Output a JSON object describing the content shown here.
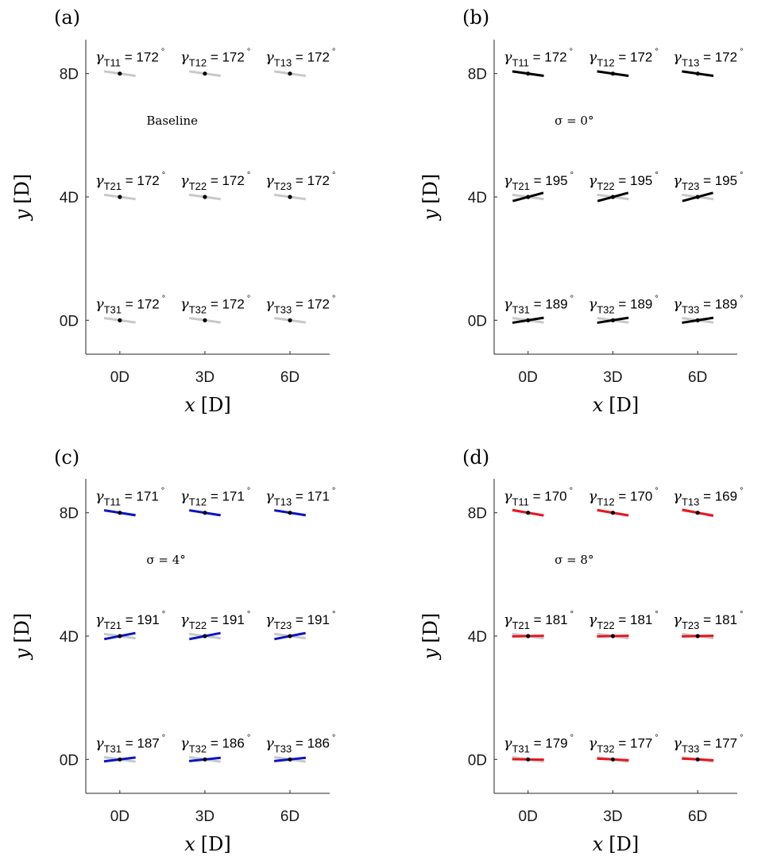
{
  "chart_data": [
    {
      "type": "scatter",
      "panel_label": "(a)",
      "annotation": "Baseline",
      "xlabel_var": "x",
      "xlabel_unit": "[D]",
      "ylabel_var": "y",
      "ylabel_unit": "[D]",
      "x_ticks": [
        "0D",
        "3D",
        "6D"
      ],
      "y_ticks": [
        "0D",
        "4D",
        "8D"
      ],
      "xlim": [
        -1.2,
        7.4
      ],
      "ylim": [
        -1.1,
        9.1
      ],
      "line_color": "#c8c8c8",
      "show_baseline": false,
      "turbines": [
        {
          "id": "11",
          "x": 0,
          "y": 8,
          "gamma": 172,
          "label": "172"
        },
        {
          "id": "12",
          "x": 3,
          "y": 8,
          "gamma": 172,
          "label": "172"
        },
        {
          "id": "13",
          "x": 6,
          "y": 8,
          "gamma": 172,
          "label": "172"
        },
        {
          "id": "21",
          "x": 0,
          "y": 4,
          "gamma": 172,
          "label": "172"
        },
        {
          "id": "22",
          "x": 3,
          "y": 4,
          "gamma": 172,
          "label": "172"
        },
        {
          "id": "23",
          "x": 6,
          "y": 4,
          "gamma": 172,
          "label": "172"
        },
        {
          "id": "31",
          "x": 0,
          "y": 0,
          "gamma": 172,
          "label": "172"
        },
        {
          "id": "32",
          "x": 3,
          "y": 0,
          "gamma": 172,
          "label": "172"
        },
        {
          "id": "33",
          "x": 6,
          "y": 0,
          "gamma": 172,
          "label": "172"
        }
      ]
    },
    {
      "type": "scatter",
      "panel_label": "(b)",
      "annotation": "σ = 0°",
      "xlabel_var": "x",
      "xlabel_unit": "[D]",
      "ylabel_var": "y",
      "ylabel_unit": "[D]",
      "x_ticks": [
        "0D",
        "3D",
        "6D"
      ],
      "y_ticks": [
        "0D",
        "4D",
        "8D"
      ],
      "xlim": [
        -1.2,
        7.4
      ],
      "ylim": [
        -1.1,
        9.1
      ],
      "line_color": "#000000",
      "show_baseline": true,
      "turbines": [
        {
          "id": "11",
          "x": 0,
          "y": 8,
          "gamma": 172,
          "label": "172"
        },
        {
          "id": "12",
          "x": 3,
          "y": 8,
          "gamma": 172,
          "label": "172"
        },
        {
          "id": "13",
          "x": 6,
          "y": 8,
          "gamma": 172,
          "label": "172"
        },
        {
          "id": "21",
          "x": 0,
          "y": 4,
          "gamma": 195,
          "label": "195"
        },
        {
          "id": "22",
          "x": 3,
          "y": 4,
          "gamma": 195,
          "label": "195"
        },
        {
          "id": "23",
          "x": 6,
          "y": 4,
          "gamma": 195,
          "label": "195"
        },
        {
          "id": "31",
          "x": 0,
          "y": 0,
          "gamma": 189,
          "label": "189"
        },
        {
          "id": "32",
          "x": 3,
          "y": 0,
          "gamma": 189,
          "label": "189"
        },
        {
          "id": "33",
          "x": 6,
          "y": 0,
          "gamma": 189,
          "label": "189"
        }
      ]
    },
    {
      "type": "scatter",
      "panel_label": "(c)",
      "annotation": "σ = 4°",
      "xlabel_var": "x",
      "xlabel_unit": "[D]",
      "ylabel_var": "y",
      "ylabel_unit": "[D]",
      "x_ticks": [
        "0D",
        "3D",
        "6D"
      ],
      "y_ticks": [
        "0D",
        "4D",
        "8D"
      ],
      "xlim": [
        -1.2,
        7.4
      ],
      "ylim": [
        -1.1,
        9.1
      ],
      "line_color": "#0a14c8",
      "show_baseline": true,
      "turbines": [
        {
          "id": "11",
          "x": 0,
          "y": 8,
          "gamma": 171,
          "label": "171"
        },
        {
          "id": "12",
          "x": 3,
          "y": 8,
          "gamma": 171,
          "label": "171"
        },
        {
          "id": "13",
          "x": 6,
          "y": 8,
          "gamma": 171,
          "label": "171"
        },
        {
          "id": "21",
          "x": 0,
          "y": 4,
          "gamma": 191,
          "label": "191"
        },
        {
          "id": "22",
          "x": 3,
          "y": 4,
          "gamma": 191,
          "label": "191"
        },
        {
          "id": "23",
          "x": 6,
          "y": 4,
          "gamma": 191,
          "label": "191"
        },
        {
          "id": "31",
          "x": 0,
          "y": 0,
          "gamma": 187,
          "label": "187"
        },
        {
          "id": "32",
          "x": 3,
          "y": 0,
          "gamma": 186,
          "label": "186"
        },
        {
          "id": "33",
          "x": 6,
          "y": 0,
          "gamma": 186,
          "label": "186"
        }
      ]
    },
    {
      "type": "scatter",
      "panel_label": "(d)",
      "annotation": "σ = 8°",
      "xlabel_var": "x",
      "xlabel_unit": "[D]",
      "ylabel_var": "y",
      "ylabel_unit": "[D]",
      "x_ticks": [
        "0D",
        "3D",
        "6D"
      ],
      "y_ticks": [
        "0D",
        "4D",
        "8D"
      ],
      "xlim": [
        -1.2,
        7.4
      ],
      "ylim": [
        -1.1,
        9.1
      ],
      "line_color": "#e8141e",
      "show_baseline": true,
      "turbines": [
        {
          "id": "11",
          "x": 0,
          "y": 8,
          "gamma": 170,
          "label": "170"
        },
        {
          "id": "12",
          "x": 3,
          "y": 8,
          "gamma": 170,
          "label": "170"
        },
        {
          "id": "13",
          "x": 6,
          "y": 8,
          "gamma": 169,
          "label": "169"
        },
        {
          "id": "21",
          "x": 0,
          "y": 4,
          "gamma": 181,
          "label": "181"
        },
        {
          "id": "22",
          "x": 3,
          "y": 4,
          "gamma": 181,
          "label": "181"
        },
        {
          "id": "23",
          "x": 6,
          "y": 4,
          "gamma": 181,
          "label": "181"
        },
        {
          "id": "31",
          "x": 0,
          "y": 0,
          "gamma": 179,
          "label": "179"
        },
        {
          "id": "32",
          "x": 3,
          "y": 0,
          "gamma": 177,
          "label": "177"
        },
        {
          "id": "33",
          "x": 6,
          "y": 0,
          "gamma": 177,
          "label": "177"
        }
      ]
    }
  ],
  "baseline_gamma": 172,
  "baseline_color": "#c8c8c8",
  "marker_color": "#000000",
  "symbols": {
    "gamma": "γ",
    "subscript_prefix": "T",
    "equals": "=",
    "degree": "°"
  }
}
